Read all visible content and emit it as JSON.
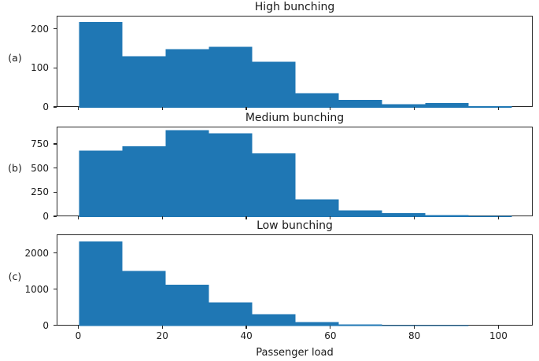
{
  "figure": {
    "background": "#ffffff",
    "bar_color": "#1f77b4",
    "spine_color": "#262626",
    "text_color": "#1a1a1a"
  },
  "x_axis": {
    "label": "Passenger load",
    "ticks": [
      0,
      20,
      40,
      60,
      80,
      100
    ],
    "xlim": [
      -5.15,
      108.15
    ]
  },
  "chart_data": [
    {
      "type": "bar",
      "subtype": "histogram",
      "panel_label": "(a)",
      "title": "High bunching",
      "bin_edges": [
        0,
        10.3,
        20.6,
        30.9,
        41.2,
        51.5,
        61.8,
        72.1,
        82.4,
        92.7,
        103
      ],
      "values": [
        220,
        132,
        150,
        156,
        118,
        37,
        20,
        9,
        12,
        4
      ],
      "yticks": [
        0,
        100,
        200
      ],
      "ylim": [
        0,
        234
      ],
      "xlabel": "",
      "ylabel": "",
      "grid": false,
      "legend": null
    },
    {
      "type": "bar",
      "subtype": "histogram",
      "panel_label": "(b)",
      "title": "Medium bunching",
      "bin_edges": [
        0,
        10.3,
        20.6,
        30.9,
        41.2,
        51.5,
        61.8,
        72.1,
        82.4,
        92.7,
        103
      ],
      "values": [
        690,
        735,
        900,
        870,
        660,
        185,
        70,
        40,
        20,
        12
      ],
      "yticks": [
        0,
        250,
        500,
        750
      ],
      "ylim": [
        0,
        930
      ],
      "xlabel": "",
      "ylabel": "",
      "grid": false,
      "legend": null
    },
    {
      "type": "bar",
      "subtype": "histogram",
      "panel_label": "(c)",
      "title": "Low bunching",
      "bin_edges": [
        0,
        10.3,
        20.6,
        30.9,
        41.2,
        51.5,
        61.8,
        72.1,
        82.4,
        92.7,
        103
      ],
      "values": [
        2350,
        1530,
        1150,
        660,
        330,
        110,
        40,
        25,
        25,
        5
      ],
      "yticks": [
        0,
        1000,
        2000
      ],
      "ylim": [
        0,
        2520
      ],
      "xlabel": "Passenger load",
      "ylabel": "",
      "grid": false,
      "legend": null
    }
  ]
}
